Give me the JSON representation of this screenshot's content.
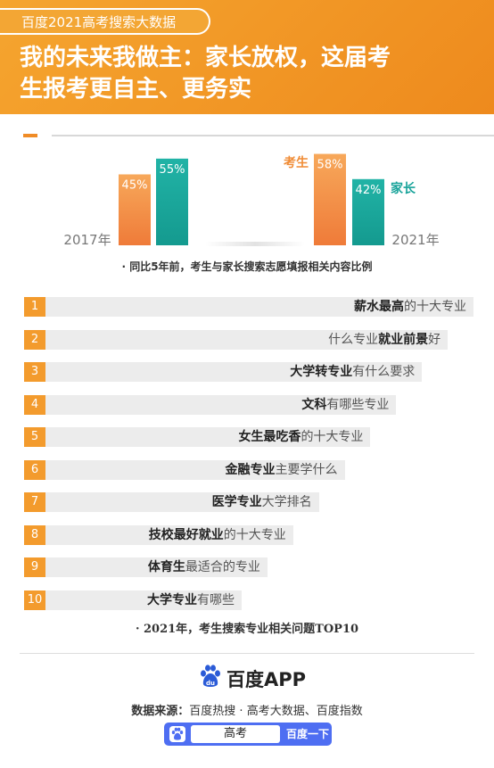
{
  "header": {
    "tag": "百度2021高考搜索大数据",
    "title_line1": "我的未来我做主：家长放权，这届考",
    "title_line2": "生报考更自主、更务实"
  },
  "colors": {
    "student": "#f08c36",
    "parent": "#18a39a",
    "accent": "#f39b2d",
    "bar_bg": "#ececec",
    "search_blue": "#4e6ef2"
  },
  "chart_data": {
    "type": "bar",
    "categories": [
      "2017年",
      "2021年"
    ],
    "series": [
      {
        "name": "考生",
        "values": [
          45,
          58
        ],
        "labels": [
          "45%",
          "58%"
        ]
      },
      {
        "name": "家长",
        "values": [
          55,
          42
        ],
        "labels": [
          "55%",
          "42%"
        ]
      }
    ],
    "ylim": [
      0,
      60
    ],
    "legend": [
      "考生",
      "家长"
    ],
    "caption": "· 同比5年前，考生与家长搜索志愿填报相关内容比例"
  },
  "top10": {
    "items": [
      {
        "rank": "1",
        "bold": "薪水最高",
        "rest": "的十大专业",
        "value": 10
      },
      {
        "rank": "2",
        "pre": "什么专业",
        "bold": "就业前景",
        "rest": "好",
        "value": 9
      },
      {
        "rank": "3",
        "bold": "大学转专业",
        "rest": "有什么要求",
        "value": 8
      },
      {
        "rank": "4",
        "bold": "文科",
        "rest": "有哪些专业",
        "value": 7
      },
      {
        "rank": "5",
        "bold": "女生最吃香",
        "rest": "的十大专业",
        "value": 6
      },
      {
        "rank": "6",
        "bold": "金融专业",
        "rest": "主要学什么",
        "value": 5
      },
      {
        "rank": "7",
        "bold": "医学专业",
        "rest": "大学排名",
        "value": 4
      },
      {
        "rank": "8",
        "bold": "技校最好就业",
        "rest": "的十大专业",
        "value": 3
      },
      {
        "rank": "9",
        "bold": "体育生",
        "rest": "最适合的专业",
        "value": 2
      },
      {
        "rank": "10",
        "bold": "大学专业",
        "rest": "有哪些",
        "value": 1
      }
    ],
    "caption": "· 2021年，考生搜索专业相关问题TOP10"
  },
  "footer": {
    "logo": "百度APP",
    "source_label": "数据来源：",
    "source_text": "百度热搜 · 高考大数据、百度指数",
    "search_value": "高考",
    "search_button": "百度一下",
    "logo_icon": "baidu-paw-icon"
  }
}
